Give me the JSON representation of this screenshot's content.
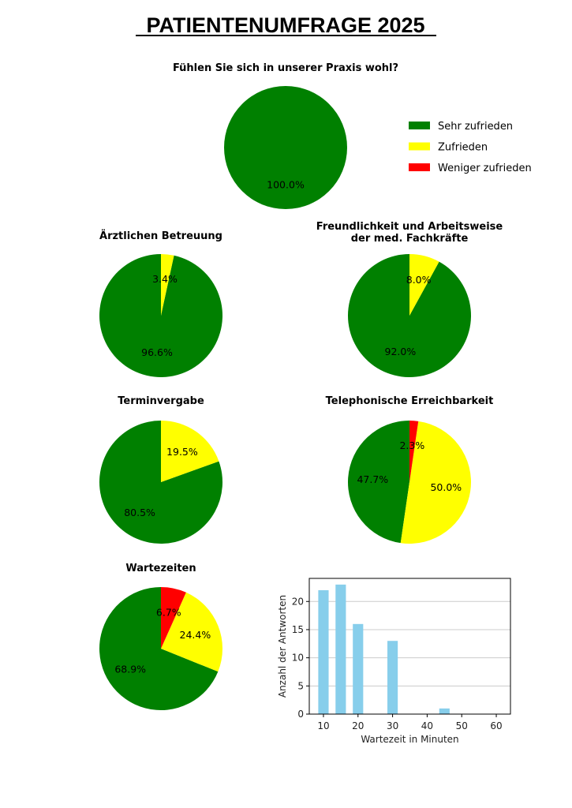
{
  "title": "PATIENTENUMFRAGE 2025",
  "legend": [
    {
      "label": "Sehr zufrieden",
      "color": "#008000"
    },
    {
      "label": "Zufrieden",
      "color": "#ffff00"
    },
    {
      "label": "Weniger zufrieden",
      "color": "#ff0000"
    }
  ],
  "chart_data": [
    {
      "type": "pie",
      "title": "Fühlen Sie sich in unserer Praxis wohl?",
      "labels": [
        "Sehr zufrieden"
      ],
      "values": [
        100.0
      ],
      "data_labels": [
        "100.0%"
      ],
      "legend": "right"
    },
    {
      "type": "pie",
      "title": "Ärztlichen Betreuung",
      "labels": [
        "Sehr zufrieden",
        "Zufrieden"
      ],
      "values": [
        96.6,
        3.4
      ],
      "data_labels": [
        "96.6%",
        "3.4%"
      ]
    },
    {
      "type": "pie",
      "title": "Freundlichkeit und Arbeitsweise\nder med. Fachkräfte",
      "title_lines": [
        "Freundlichkeit und Arbeitsweise",
        "der med. Fachkräfte"
      ],
      "labels": [
        "Sehr zufrieden",
        "Zufrieden"
      ],
      "values": [
        92.0,
        8.0
      ],
      "data_labels": [
        "92.0%",
        "8.0%"
      ]
    },
    {
      "type": "pie",
      "title": "Terminvergabe",
      "labels": [
        "Sehr zufrieden",
        "Zufrieden"
      ],
      "values": [
        80.5,
        19.5
      ],
      "data_labels": [
        "80.5%",
        "19.5%"
      ]
    },
    {
      "type": "pie",
      "title": "Telephonische Erreichbarkeit",
      "labels": [
        "Sehr zufrieden",
        "Zufrieden",
        "Weniger zufrieden"
      ],
      "values": [
        47.7,
        50.0,
        2.3
      ],
      "data_labels": [
        "47.7%",
        "50.0%",
        "2.3%"
      ]
    },
    {
      "type": "pie",
      "title": "Wartezeiten",
      "labels": [
        "Sehr zufrieden",
        "Zufrieden",
        "Weniger zufrieden"
      ],
      "values": [
        68.9,
        24.4,
        6.7
      ],
      "data_labels": [
        "68.9%",
        "24.4%",
        "6.7%"
      ]
    },
    {
      "type": "bar",
      "x": [
        10,
        15,
        20,
        30,
        45
      ],
      "values": [
        22,
        23,
        16,
        13,
        1
      ],
      "color": "#87ceeb",
      "xlabel": "Wartezeit in Minuten",
      "ylabel": "Anzahl der Antworten",
      "xticks": [
        "10",
        "20",
        "30",
        "40",
        "50",
        "60"
      ],
      "yticks": [
        "0",
        "5",
        "10",
        "15",
        "20"
      ],
      "xlim": [
        5.9,
        64.1
      ],
      "ylim": [
        0,
        24.1
      ],
      "grid": "y"
    }
  ]
}
